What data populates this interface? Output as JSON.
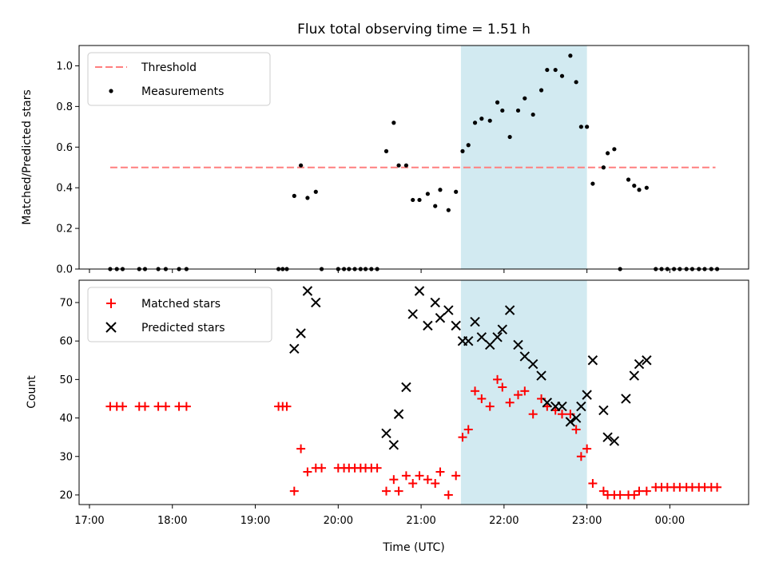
{
  "chart_data": {
    "title": "Flux total observing time = 1.51 h",
    "xlabel": "Time (UTC)",
    "x_ticks": [
      "17:00",
      "18:00",
      "19:00",
      "20:00",
      "21:00",
      "22:00",
      "23:00",
      "00:00"
    ],
    "x_tick_hours": [
      17,
      18,
      19,
      20,
      21,
      22,
      23,
      24
    ],
    "xlim": [
      16.875,
      24.95
    ],
    "highlight_span": [
      21.48,
      23.0
    ],
    "highlight_color": "#add8e6",
    "panels": [
      {
        "type": "scatter",
        "ylabel": "Matched/Predicted stars",
        "ylim": [
          0,
          1.1
        ],
        "y_ticks": [
          0.0,
          0.2,
          0.4,
          0.6,
          0.8,
          1.0
        ],
        "y_tick_labels": [
          "0.0",
          "0.2",
          "0.4",
          "0.6",
          "0.8",
          "1.0"
        ],
        "legend": [
          "Threshold",
          "Measurements"
        ],
        "threshold": {
          "value": 0.5,
          "x_range": [
            17.25,
            24.55
          ],
          "color": "#ff7f7f"
        },
        "series": [
          {
            "name": "Measurements",
            "marker": "dot",
            "color": "#000000",
            "x": [
              17.25,
              17.33,
              17.4,
              17.6,
              17.67,
              17.83,
              17.92,
              18.08,
              18.17,
              19.28,
              19.33,
              19.38,
              19.47,
              19.55,
              19.63,
              19.73,
              19.8,
              20.0,
              20.07,
              20.13,
              20.2,
              20.27,
              20.33,
              20.4,
              20.47,
              20.58,
              20.67,
              20.73,
              20.82,
              20.9,
              20.98,
              21.08,
              21.17,
              21.23,
              21.33,
              21.42,
              21.5,
              21.57,
              21.65,
              21.73,
              21.83,
              21.92,
              21.98,
              22.07,
              22.17,
              22.25,
              22.35,
              22.45,
              22.52,
              22.62,
              22.7,
              22.8,
              22.87,
              22.93,
              23.0,
              23.07,
              23.2,
              23.25,
              23.33,
              23.4,
              23.5,
              23.57,
              23.63,
              23.72,
              23.83,
              23.9,
              23.97,
              24.05,
              24.12,
              24.2,
              24.27,
              24.35,
              24.42,
              24.5,
              24.57
            ],
            "y": [
              0,
              0,
              0,
              0,
              0,
              0,
              0,
              0,
              0,
              0,
              0,
              0,
              0.36,
              0.51,
              0.35,
              0.38,
              0,
              0,
              0,
              0,
              0,
              0,
              0,
              0,
              0,
              0.58,
              0.72,
              0.51,
              0.51,
              0.34,
              0.34,
              0.37,
              0.31,
              0.39,
              0.29,
              0.38,
              0.58,
              0.61,
              0.72,
              0.74,
              0.73,
              0.82,
              0.78,
              0.65,
              0.78,
              0.84,
              0.76,
              0.88,
              0.98,
              0.98,
              0.95,
              1.05,
              0.92,
              0.7,
              0.7,
              0.42,
              0.5,
              0.57,
              0.59,
              0,
              0.44,
              0.41,
              0.39,
              0.4,
              0,
              0,
              0,
              0,
              0,
              0,
              0,
              0,
              0,
              0,
              0
            ]
          }
        ]
      },
      {
        "type": "scatter",
        "ylabel": "Count",
        "ylim": [
          17.5,
          75.8
        ],
        "y_ticks": [
          20,
          30,
          40,
          50,
          60,
          70
        ],
        "y_tick_labels": [
          "20",
          "30",
          "40",
          "50",
          "60",
          "70"
        ],
        "legend": [
          "Matched stars",
          "Predicted stars"
        ],
        "series": [
          {
            "name": "Matched stars",
            "marker": "plus",
            "color": "#ff0000",
            "x": [
              17.25,
              17.33,
              17.4,
              17.6,
              17.67,
              17.83,
              17.92,
              18.08,
              18.17,
              19.28,
              19.33,
              19.38,
              19.47,
              19.55,
              19.63,
              19.73,
              19.8,
              20.0,
              20.07,
              20.13,
              20.2,
              20.27,
              20.33,
              20.4,
              20.47,
              20.58,
              20.67,
              20.73,
              20.82,
              20.9,
              20.98,
              21.08,
              21.17,
              21.23,
              21.33,
              21.42,
              21.5,
              21.57,
              21.65,
              21.73,
              21.83,
              21.92,
              21.98,
              22.07,
              22.17,
              22.25,
              22.35,
              22.45,
              22.52,
              22.62,
              22.7,
              22.8,
              22.87,
              22.93,
              23.0,
              23.07,
              23.2,
              23.25,
              23.33,
              23.4,
              23.5,
              23.57,
              23.63,
              23.72,
              23.83,
              23.9,
              23.97,
              24.05,
              24.12,
              24.2,
              24.27,
              24.35,
              24.42,
              24.5,
              24.57
            ],
            "y": [
              43,
              43,
              43,
              43,
              43,
              43,
              43,
              43,
              43,
              43,
              43,
              43,
              21,
              32,
              26,
              27,
              27,
              27,
              27,
              27,
              27,
              27,
              27,
              27,
              27,
              21,
              24,
              21,
              25,
              23,
              25,
              24,
              23,
              26,
              20,
              25,
              35,
              37,
              47,
              45,
              43,
              50,
              48,
              44,
              46,
              47,
              41,
              45,
              43,
              42,
              41,
              41,
              37,
              30,
              32,
              23,
              21,
              20,
              20,
              20,
              20,
              20,
              21,
              21,
              22,
              22,
              22,
              22,
              22,
              22,
              22,
              22,
              22,
              22,
              22
            ]
          },
          {
            "name": "Predicted stars",
            "marker": "x",
            "color": "#000000",
            "x": [
              19.47,
              19.55,
              19.63,
              19.73,
              20.58,
              20.67,
              20.73,
              20.82,
              20.9,
              20.98,
              21.08,
              21.17,
              21.23,
              21.33,
              21.42,
              21.5,
              21.57,
              21.65,
              21.73,
              21.83,
              21.92,
              21.98,
              22.07,
              22.17,
              22.25,
              22.35,
              22.45,
              22.52,
              22.62,
              22.7,
              22.8,
              22.87,
              22.93,
              23.0,
              23.07,
              23.2,
              23.25,
              23.33,
              23.47,
              23.57,
              23.63,
              23.72
            ],
            "y": [
              58,
              62,
              73,
              70,
              36,
              33,
              41,
              48,
              67,
              73,
              64,
              70,
              66,
              68,
              64,
              60,
              60,
              65,
              61,
              59,
              61,
              63,
              68,
              59,
              56,
              54,
              51,
              44,
              43,
              43,
              39,
              40,
              43,
              46,
              55,
              42,
              35,
              34,
              45,
              51,
              54,
              55
            ]
          }
        ]
      }
    ]
  }
}
